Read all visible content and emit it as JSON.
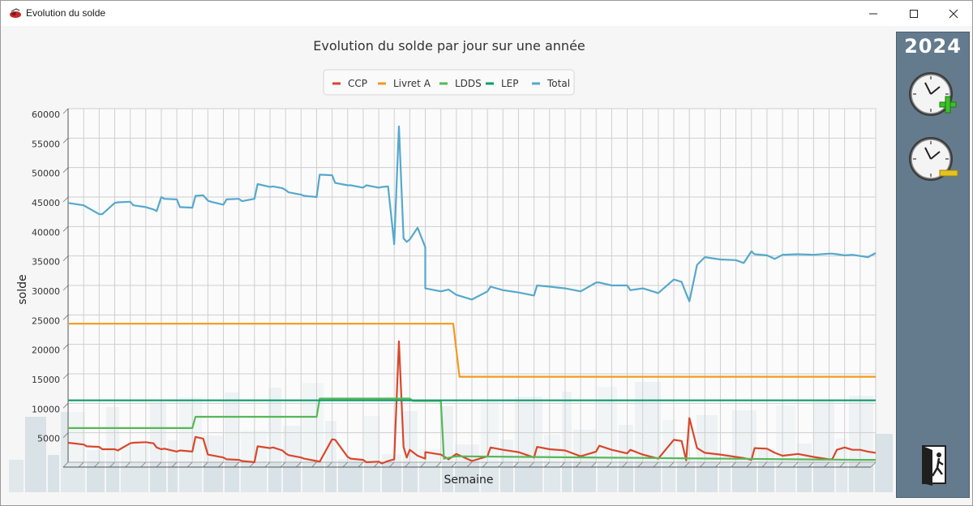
{
  "window": {
    "title": "Evolution du solde"
  },
  "panel": {
    "year": "2024"
  },
  "icons": {
    "add": "clock-plus-icon",
    "remove": "clock-minus-icon",
    "exit": "exit-door-icon"
  },
  "chart_data": {
    "type": "line",
    "title": "Evolution du solde par jour sur une année",
    "xlabel": "Semaine",
    "ylabel": "solde",
    "ylim": [
      0,
      60000
    ],
    "yticks": [
      5000,
      10000,
      15000,
      20000,
      25000,
      30000,
      35000,
      40000,
      45000,
      50000,
      55000,
      60000
    ],
    "x_range": [
      0,
      52
    ],
    "grid": true,
    "legend": "top-center",
    "series": [
      {
        "name": "CCP",
        "color": "#d9472b",
        "x": [
          0,
          1,
          1.2,
          2,
          2.2,
          3,
          3.2,
          4,
          4.2,
          5,
          5.5,
          5.7,
          6,
          6.2,
          7,
          7.2,
          8,
          8.2,
          8.7,
          9,
          9.2,
          10,
          10.2,
          11,
          11.2,
          12,
          12.2,
          13,
          13.2,
          13.8,
          14,
          14.2,
          15,
          15.2,
          16,
          16.2,
          17,
          17.2,
          18,
          18.2,
          19,
          19.2,
          20,
          20.2,
          20.6,
          21,
          21.3,
          21.6,
          21.8,
          22,
          22.5,
          23,
          23,
          24,
          24.5,
          25,
          26,
          27,
          27.2,
          28,
          29,
          30,
          30.2,
          31,
          32,
          33,
          34,
          34.2,
          35,
          36,
          36.2,
          37,
          38,
          39,
          39.5,
          39.8,
          40,
          40.5,
          41,
          42,
          43,
          43.5,
          44,
          44.2,
          45,
          45.5,
          46,
          47,
          48,
          49,
          49.2,
          49.5,
          50,
          50.5,
          51,
          51.5,
          52
        ],
        "y": [
          3300,
          3000,
          2700,
          2600,
          2200,
          2200,
          2000,
          3200,
          3300,
          3400,
          3200,
          2500,
          2200,
          2300,
          1800,
          2000,
          1800,
          4300,
          4000,
          1300,
          1200,
          800,
          500,
          400,
          200,
          0,
          2700,
          2400,
          2500,
          2000,
          1500,
          1200,
          800,
          600,
          200,
          100,
          3900,
          3800,
          900,
          600,
          400,
          0,
          100,
          -200,
          200,
          500,
          20500,
          2600,
          800,
          2100,
          1100,
          600,
          1700,
          1300,
          500,
          1400,
          200,
          1000,
          2500,
          2100,
          1700,
          800,
          2600,
          2200,
          2000,
          1000,
          1800,
          2800,
          2100,
          1500,
          2100,
          1300,
          600,
          3800,
          3600,
          300,
          7500,
          2400,
          1600,
          1300,
          900,
          700,
          400,
          2400,
          2300,
          1600,
          1100,
          1400,
          900,
          500,
          500,
          2100,
          2500,
          2100,
          2100,
          1800,
          1600
        ]
      },
      {
        "name": "Livret A",
        "color": "#f39a1e",
        "x": [
          0,
          24.8,
          25.2,
          30,
          52
        ],
        "y": [
          23500,
          23500,
          14500,
          14500,
          14500
        ]
      },
      {
        "name": "LDDS",
        "color": "#55b856",
        "x": [
          0,
          8,
          8.2,
          16,
          16.2,
          22,
          22.2,
          24,
          24.2,
          25,
          51,
          52
        ],
        "y": [
          5800,
          5800,
          7700,
          7700,
          10800,
          10800,
          10400,
          10400,
          600,
          1000,
          400,
          400
        ]
      },
      {
        "name": "LEP",
        "color": "#0e9b6e",
        "x": [
          0,
          52
        ],
        "y": [
          10500,
          10500
        ]
      },
      {
        "name": "Total",
        "color": "#55a9cc",
        "x": [
          0,
          1,
          1.2,
          2,
          2.2,
          3,
          3.2,
          4,
          4.2,
          5,
          5.5,
          5.7,
          6,
          6.2,
          7,
          7.2,
          8,
          8.2,
          8.7,
          9,
          9.2,
          10,
          10.2,
          11,
          11.2,
          12,
          12.2,
          13,
          13.2,
          13.8,
          14,
          14.2,
          15,
          15.2,
          16,
          16.2,
          17,
          17.2,
          18,
          18.2,
          19,
          19.2,
          20,
          20.2,
          20.6,
          21,
          21.3,
          21.6,
          21.8,
          22,
          22.5,
          23,
          23,
          24,
          24.5,
          25,
          26,
          27,
          27.2,
          28,
          29,
          30,
          30.2,
          31,
          32,
          33,
          34,
          34.2,
          35,
          36,
          36.2,
          37,
          38,
          39,
          39.5,
          39.8,
          40,
          40.5,
          41,
          42,
          43,
          43.5,
          44,
          44.2,
          45,
          45.5,
          46,
          47,
          48,
          49,
          49.2,
          49.5,
          50,
          50.5,
          51,
          51.5,
          52
        ],
        "y": [
          44000,
          43600,
          43300,
          42100,
          42100,
          44000,
          44100,
          44200,
          43600,
          43300,
          42900,
          42600,
          45000,
          44700,
          44600,
          43300,
          43200,
          45200,
          45300,
          44400,
          44200,
          43700,
          44600,
          44700,
          44300,
          44700,
          47200,
          46700,
          46800,
          46500,
          46200,
          45800,
          45400,
          45200,
          45000,
          48800,
          48700,
          47400,
          47000,
          47000,
          46600,
          47000,
          46600,
          46700,
          46800,
          37000,
          57000,
          38000,
          37400,
          37800,
          39800,
          36500,
          29500,
          29000,
          29300,
          28400,
          27600,
          29000,
          29800,
          29200,
          28800,
          28300,
          30000,
          29800,
          29500,
          29000,
          30500,
          30500,
          30000,
          30000,
          29200,
          29500,
          28700,
          31000,
          30600,
          28600,
          27300,
          33500,
          34800,
          34400,
          34300,
          33800,
          35800,
          35300,
          35100,
          34500,
          35200,
          35300,
          35200,
          35400,
          35400,
          35300,
          35100,
          35200,
          35000,
          34800,
          35500
        ]
      }
    ]
  }
}
